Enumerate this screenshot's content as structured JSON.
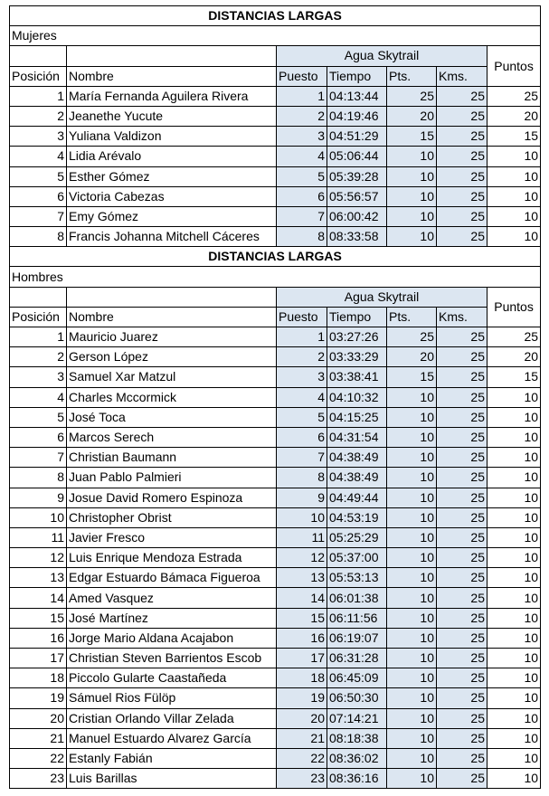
{
  "sections": [
    {
      "title": "DISTANCIAS LARGAS",
      "group": "Mujeres",
      "event": "Agua Skytrail",
      "columns": [
        "Posición",
        "Nombre",
        "Puesto",
        "Tiempo",
        "Pts.",
        "Kms.",
        "Puntos"
      ],
      "rows": [
        [
          1,
          "María Fernanda Aguilera Rivera",
          1,
          "04:13:44",
          25,
          25,
          25
        ],
        [
          2,
          "Jeanethe Yucute",
          2,
          "04:19:46",
          20,
          25,
          20
        ],
        [
          3,
          "Yuliana Valdizon",
          3,
          "04:51:29",
          15,
          25,
          15
        ],
        [
          4,
          "Lidia Arévalo",
          4,
          "05:06:44",
          10,
          25,
          10
        ],
        [
          5,
          "Esther Gómez",
          5,
          "05:39:28",
          10,
          25,
          10
        ],
        [
          6,
          "Victoria Cabezas",
          6,
          "05:56:57",
          10,
          25,
          10
        ],
        [
          7,
          "Emy Gómez",
          7,
          "06:00:42",
          10,
          25,
          10
        ],
        [
          8,
          "Francis Johanna Mitchell Cáceres",
          8,
          "08:33:58",
          10,
          25,
          10
        ]
      ]
    },
    {
      "title": "DISTANCIAS LARGAS",
      "group": "Hombres",
      "event": "Agua Skytrail",
      "columns": [
        "Posición",
        "Nombre",
        "Puesto",
        "Tiempo",
        "Pts.",
        "Kms.",
        "Puntos"
      ],
      "rows": [
        [
          1,
          "Mauricio Juarez",
          1,
          "03:27:26",
          25,
          25,
          25
        ],
        [
          2,
          "Gerson López",
          2,
          "03:33:29",
          20,
          25,
          20
        ],
        [
          3,
          "Samuel Xar Matzul",
          3,
          "03:38:41",
          15,
          25,
          15
        ],
        [
          4,
          "Charles Mccormick",
          4,
          "04:10:32",
          10,
          25,
          10
        ],
        [
          5,
          "José Toca",
          5,
          "04:15:25",
          10,
          25,
          10
        ],
        [
          6,
          "Marcos Serech",
          6,
          "04:31:54",
          10,
          25,
          10
        ],
        [
          7,
          "Christian Baumann",
          7,
          "04:38:49",
          10,
          25,
          10
        ],
        [
          8,
          "Juan Pablo Palmieri",
          8,
          "04:38:49",
          10,
          25,
          10
        ],
        [
          9,
          "Josue David Romero Espinoza",
          9,
          "04:49:44",
          10,
          25,
          10
        ],
        [
          10,
          "Christopher Obrist",
          10,
          "04:53:19",
          10,
          25,
          10
        ],
        [
          11,
          "Javier Fresco",
          11,
          "05:25:29",
          10,
          25,
          10
        ],
        [
          12,
          "Luis Enrique Mendoza Estrada",
          12,
          "05:37:00",
          10,
          25,
          10
        ],
        [
          13,
          "Edgar Estuardo Bámaca Figueroa",
          13,
          "05:53:13",
          10,
          25,
          10
        ],
        [
          14,
          "Amed Vasquez",
          14,
          "06:01:38",
          10,
          25,
          10
        ],
        [
          15,
          "José Martínez",
          15,
          "06:11:56",
          10,
          25,
          10
        ],
        [
          16,
          "Jorge Mario Aldana Acajabon",
          16,
          "06:19:07",
          10,
          25,
          10
        ],
        [
          17,
          "Christian Steven Barrientos Escob",
          17,
          "06:31:28",
          10,
          25,
          10
        ],
        [
          18,
          "Piccolo Gularte Caastañeda",
          18,
          "06:45:09",
          10,
          25,
          10
        ],
        [
          19,
          "Sámuel Rios Fülöp",
          19,
          "06:50:30",
          10,
          25,
          10
        ],
        [
          20,
          "Cristian Orlando Villar Zelada",
          20,
          "07:14:21",
          10,
          25,
          10
        ],
        [
          21,
          "Manuel Estuardo Alvarez García",
          21,
          "08:18:38",
          10,
          25,
          10
        ],
        [
          22,
          "Estanly Fabián",
          22,
          "08:36:02",
          10,
          25,
          10
        ],
        [
          23,
          "Luis Barillas",
          23,
          "08:36:16",
          10,
          25,
          10
        ]
      ]
    }
  ]
}
